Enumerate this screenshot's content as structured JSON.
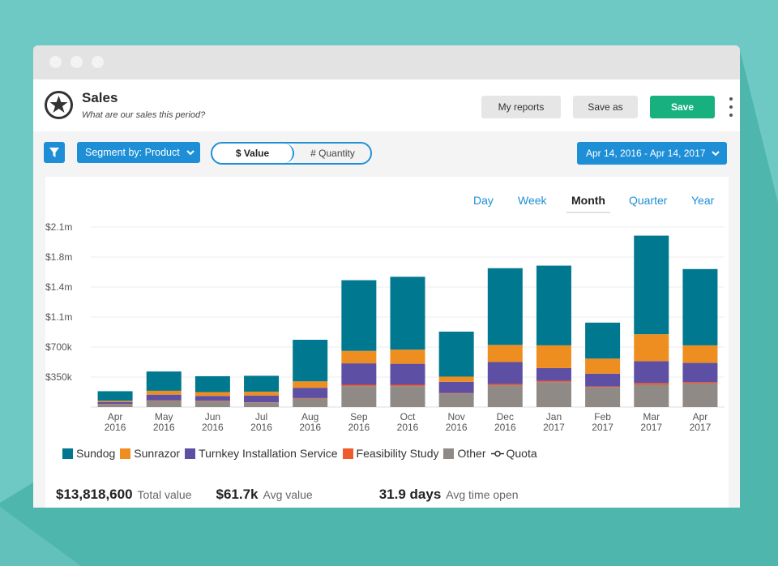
{
  "header": {
    "title": "Sales",
    "subtitle": "What are our sales this period?",
    "my_reports_label": "My reports",
    "save_as_label": "Save as",
    "save_label": "Save"
  },
  "toolbar": {
    "segment_label": "Segment by: Product",
    "toggle_value_label": "$ Value",
    "toggle_quantity_label": "# Quantity",
    "date_range": "Apr 14, 2016 - Apr 14, 2017"
  },
  "period_tabs": [
    "Day",
    "Week",
    "Month",
    "Quarter",
    "Year"
  ],
  "active_period": "Month",
  "colors": {
    "sundog": "#00788f",
    "sunrazor": "#ef8e20",
    "turnkey": "#5d4fa3",
    "feasibility": "#ef5a2d",
    "other": "#8f8a85",
    "accent": "#1e8fd6",
    "save_button": "#17b07e"
  },
  "legend": [
    {
      "name": "Sundog",
      "color": "#00788f"
    },
    {
      "name": "Sunrazor",
      "color": "#ef8e20"
    },
    {
      "name": "Turnkey Installation Service",
      "color": "#5d4fa3"
    },
    {
      "name": "Feasibility Study",
      "color": "#ef5a2d"
    },
    {
      "name": "Other",
      "color": "#8f8a85"
    }
  ],
  "quota_label": "Quota",
  "chart_data": {
    "type": "bar",
    "stacked": true,
    "categories": [
      "Apr 2016",
      "May 2016",
      "Jun 2016",
      "Jul 2016",
      "Aug 2016",
      "Sep 2016",
      "Oct 2016",
      "Nov 2016",
      "Dec 2016",
      "Jan 2017",
      "Feb 2017",
      "Mar 2017",
      "Apr 2017"
    ],
    "category_lines": [
      [
        "Apr",
        "2016"
      ],
      [
        "May",
        "2016"
      ],
      [
        "Jun",
        "2016"
      ],
      [
        "Jul",
        "2016"
      ],
      [
        "Aug",
        "2016"
      ],
      [
        "Sep",
        "2016"
      ],
      [
        "Oct",
        "2016"
      ],
      [
        "Nov",
        "2016"
      ],
      [
        "Dec",
        "2016"
      ],
      [
        "Jan",
        "2017"
      ],
      [
        "Feb",
        "2017"
      ],
      [
        "Mar",
        "2017"
      ],
      [
        "Apr",
        "2017"
      ]
    ],
    "series": [
      {
        "name": "Other",
        "values": [
          30000,
          75000,
          70000,
          50000,
          100000,
          245000,
          245000,
          160000,
          255000,
          290000,
          230000,
          260000,
          275000
        ]
      },
      {
        "name": "Feasibility Study",
        "values": [
          5000,
          5000,
          5000,
          5000,
          5000,
          15000,
          15000,
          5000,
          15000,
          15000,
          10000,
          20000,
          15000
        ]
      },
      {
        "name": "Turnkey Installation Service",
        "values": [
          25000,
          65000,
          55000,
          80000,
          120000,
          250000,
          245000,
          130000,
          255000,
          150000,
          150000,
          255000,
          225000
        ]
      },
      {
        "name": "Sunrazor",
        "values": [
          15000,
          45000,
          45000,
          45000,
          75000,
          145000,
          165000,
          60000,
          200000,
          265000,
          175000,
          315000,
          205000
        ]
      },
      {
        "name": "Sundog",
        "values": [
          110000,
          225000,
          185000,
          185000,
          485000,
          825000,
          850000,
          525000,
          895000,
          930000,
          420000,
          1150000,
          890000
        ]
      }
    ],
    "title": "",
    "xlabel": "",
    "ylabel": "",
    "ylim": [
      0,
      2100000
    ],
    "y_ticks": [
      350000,
      700000,
      1050000,
      1400000,
      1750000,
      2100000
    ],
    "y_tick_labels": [
      "$350k",
      "$700k",
      "$1.1m",
      "$1.4m",
      "$1.8m",
      "$2.1m"
    ],
    "grid": true,
    "legend_position": "bottom-left"
  },
  "stats": [
    {
      "value": "$13,818,600",
      "label": "Total value"
    },
    {
      "value": "$61.7k",
      "label": "Avg value"
    },
    {
      "value": "31.9 days",
      "label": "Avg time open"
    }
  ]
}
